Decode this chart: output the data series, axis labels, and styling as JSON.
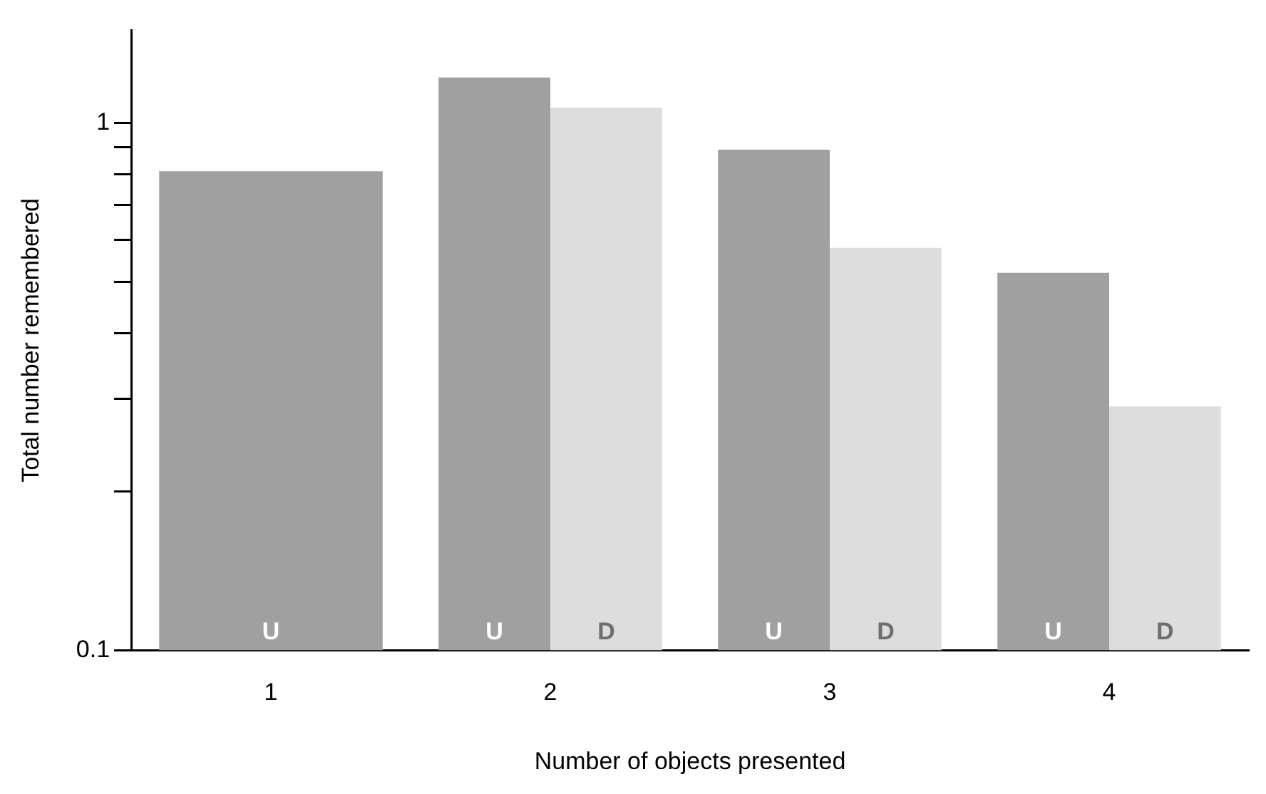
{
  "chart_data": {
    "type": "bar",
    "xlabel": "Number of objects presented",
    "ylabel": "Total number remembered",
    "categories": [
      "1",
      "2",
      "3",
      "4"
    ],
    "series": [
      {
        "name": "U",
        "color": "#a0a0a0",
        "values": [
          0.81,
          1.22,
          0.89,
          0.52
        ]
      },
      {
        "name": "D",
        "color": "#dcdddc",
        "values": [
          null,
          1.07,
          0.58,
          0.29
        ]
      }
    ],
    "log": "y",
    "ylim": [
      0.1,
      1.5
    ],
    "yticks": [
      0.1,
      {
        "value": 0.2,
        "label": null
      },
      {
        "value": 0.3,
        "label": null
      },
      {
        "value": 0.4,
        "label": null
      },
      {
        "value": 0.5,
        "label": null
      },
      {
        "value": 0.6,
        "label": null
      },
      {
        "value": 0.7,
        "label": null
      },
      {
        "value": 0.8,
        "label": null
      },
      {
        "value": 0.9,
        "label": null
      },
      1
    ],
    "grid": false,
    "legend": false
  }
}
